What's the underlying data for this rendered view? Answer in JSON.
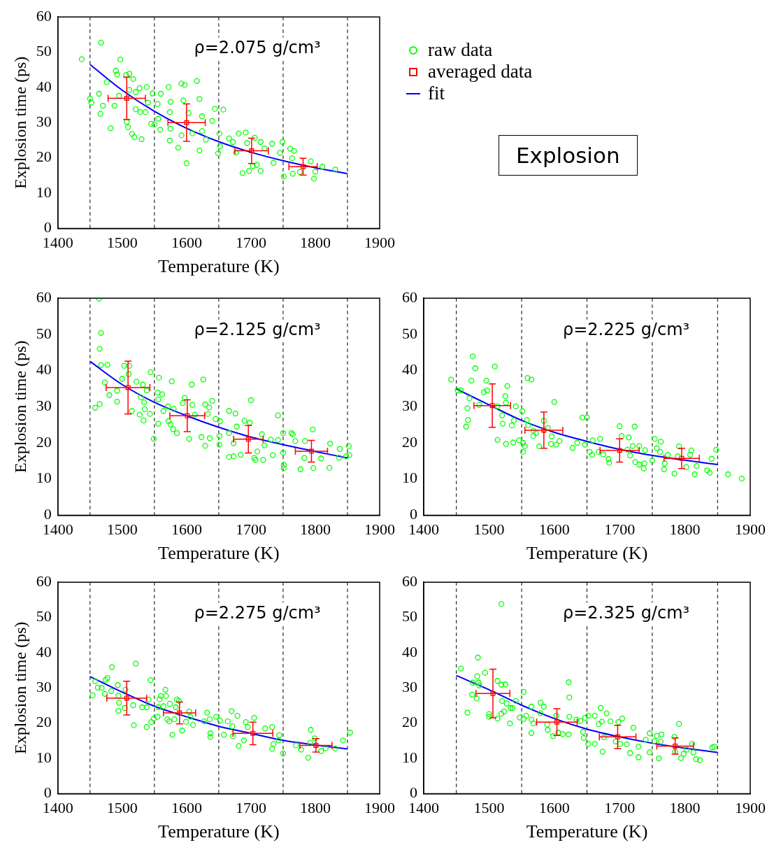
{
  "chart_data": [
    {
      "type": "scatter",
      "xlabel": "Temperature (K)",
      "ylabel": "Explosion time (ps)",
      "xlim": [
        1400,
        1900
      ],
      "xticks": [
        1400,
        1500,
        1600,
        1700,
        1800,
        1900
      ],
      "ylim": [
        0,
        60
      ],
      "yticks": [
        0,
        10,
        20,
        30,
        40,
        50,
        60
      ],
      "legend": "right",
      "annotations": [
        "ρ=2.075 g/cm³",
        "Explosion"
      ],
      "ref_lines": [
        {
          "axis": "x",
          "value": 1450,
          "line_style": "dashed"
        },
        {
          "axis": "x",
          "value": 1550,
          "line_style": "dashed"
        },
        {
          "axis": "x",
          "value": 1650,
          "line_style": "dashed"
        },
        {
          "axis": "x",
          "value": 1750,
          "line_style": "dashed"
        },
        {
          "axis": "x",
          "value": 1850,
          "line_style": "dashed"
        }
      ],
      "series": [
        {
          "name": "raw data",
          "type": "scatter",
          "marker": "circle",
          "color": "#00ff00",
          "x": [
            1437,
            1467,
            1497,
            1450,
            1452,
            1464,
            1466,
            1470,
            1476,
            1482,
            1488,
            1490,
            1492,
            1495,
            1506,
            1511,
            1517,
            1507,
            1509,
            1515,
            1519,
            1530,
            1511,
            1521,
            1527,
            1538,
            1521,
            1528,
            1536,
            1540,
            1547,
            1545,
            1550,
            1555,
            1556,
            1559,
            1560,
            1572,
            1575,
            1574,
            1592,
            1597,
            1616,
            1620,
            1595,
            1575,
            1574,
            1587,
            1600,
            1592,
            1603,
            1609,
            1620,
            1624,
            1624,
            1630,
            1640,
            1644,
            1657,
            1651,
            1652,
            1649,
            1666,
            1672,
            1681,
            1692,
            1677,
            1694,
            1706,
            1715,
            1733,
            1687,
            1697,
            1703,
            1715,
            1709,
            1721,
            1735,
            1745,
            1749,
            1761,
            1767,
            1751,
            1764,
            1765,
            1776,
            1793,
            1798,
            1800,
            1811,
            1831
          ],
          "values": [
            48,
            52.7,
            47.9,
            36.8,
            35.7,
            38.2,
            32.5,
            34.8,
            41.5,
            28.4,
            34.8,
            44.7,
            43.7,
            37.6,
            43.5,
            43.9,
            42.4,
            30.2,
            28.7,
            26.8,
            25.9,
            25.3,
            39.3,
            38.7,
            39.8,
            40.1,
            33.8,
            33,
            33,
            35.7,
            38.3,
            29.7,
            29.5,
            35.3,
            31.1,
            28,
            38.2,
            40.1,
            35.9,
            33,
            41.1,
            40.7,
            41.8,
            36.7,
            36.3,
            28.3,
            24.9,
            22.9,
            18.5,
            26.4,
            32.7,
            27,
            22.1,
            31.8,
            27.6,
            25.2,
            30.5,
            33.9,
            33.7,
            26.9,
            23.3,
            21.3,
            25.5,
            24.5,
            26.9,
            27.2,
            21.5,
            24.2,
            25.7,
            24.5,
            24,
            15.7,
            16.3,
            17.7,
            16.3,
            18,
            22.7,
            18.6,
            21.4,
            24.5,
            22.6,
            22,
            14.7,
            19.9,
            15.5,
            16,
            19,
            14.1,
            16.1,
            17.5,
            16.7
          ]
        },
        {
          "name": "averaged data",
          "type": "scatter",
          "marker": "square",
          "color": "#ff0000",
          "x": [
            1507,
            1600,
            1701,
            1781
          ],
          "values": [
            36.9,
            30,
            22,
            17.5
          ],
          "errors": [
            6,
            5.3,
            3.6,
            2.4
          ],
          "xerrors": [
            29,
            29,
            26,
            22
          ]
        },
        {
          "name": "fit",
          "type": "line",
          "color": "#0000ff",
          "x": [
            1450,
            1500,
            1550,
            1600,
            1650,
            1700,
            1750,
            1800,
            1850
          ],
          "values": [
            46.5,
            39.2,
            33.2,
            28.4,
            24.6,
            21.6,
            19.2,
            17.2,
            15.5
          ]
        }
      ]
    },
    {
      "type": "scatter",
      "xlabel": "Temperature (K)",
      "ylabel": "Explosion time (ps)",
      "xlim": [
        1400,
        1900
      ],
      "xticks": [
        1400,
        1500,
        1600,
        1700,
        1800,
        1900
      ],
      "ylim": [
        0,
        60
      ],
      "yticks": [
        0,
        10,
        20,
        30,
        40,
        50,
        60
      ],
      "annotations": [
        "ρ=2.125 g/cm³"
      ],
      "ref_lines": [
        {
          "axis": "x",
          "value": 1450,
          "line_style": "dashed"
        },
        {
          "axis": "x",
          "value": 1550,
          "line_style": "dashed"
        },
        {
          "axis": "x",
          "value": 1650,
          "line_style": "dashed"
        },
        {
          "axis": "x",
          "value": 1750,
          "line_style": "dashed"
        },
        {
          "axis": "x",
          "value": 1850,
          "line_style": "dashed"
        }
      ],
      "series": [
        {
          "type": "scatter",
          "marker": "circle",
          "color": "#00ff00",
          "x": [
            1464,
            1467,
            1465,
            1467,
            1477,
            1473,
            1458,
            1465,
            1480,
            1492,
            1492,
            1500,
            1503,
            1511,
            1510,
            1515,
            1522,
            1532,
            1538,
            1529,
            1534,
            1535,
            1527,
            1533,
            1544,
            1543,
            1549,
            1557,
            1555,
            1562,
            1556,
            1556,
            1564,
            1571,
            1577,
            1580,
            1572,
            1575,
            1579,
            1585,
            1594,
            1597,
            1608,
            1609,
            1613,
            1626,
            1629,
            1640,
            1635,
            1633,
            1604,
            1623,
            1629,
            1636,
            1645,
            1652,
            1651,
            1651,
            1666,
            1676,
            1666,
            1678,
            1673,
            1666,
            1673,
            1684,
            1690,
            1698,
            1700,
            1705,
            1707,
            1710,
            1719,
            1717,
            1721,
            1731,
            1734,
            1742,
            1742,
            1750,
            1750,
            1751,
            1751,
            1763,
            1765,
            1769,
            1777,
            1783,
            1784,
            1796,
            1797,
            1809,
            1823,
            1822,
            1838,
            1837,
            1852,
            1853,
            1848
          ],
          "values": [
            59.9,
            50.4,
            46,
            41.5,
            41.6,
            36.7,
            29.7,
            30.7,
            33.2,
            31.4,
            34.4,
            37.7,
            41.3,
            41.3,
            39,
            28.8,
            36.9,
            36.1,
            34.5,
            32.6,
            31.2,
            29.3,
            27.8,
            26.2,
            39.5,
            28,
            21.1,
            38,
            33.9,
            33.4,
            32,
            25.3,
            28.8,
            30.1,
            37,
            29.4,
            26,
            25.1,
            23.8,
            22.7,
            31,
            32.4,
            36.1,
            30.5,
            27.8,
            37.5,
            30.6,
            31.6,
            29.8,
            28,
            21.1,
            21.6,
            19.2,
            21.3,
            26.6,
            26,
            21.9,
            19.5,
            28.8,
            28.1,
            22.7,
            24.5,
            19.9,
            16.1,
            16.3,
            16.7,
            26.1,
            25.6,
            31.8,
            15.8,
            15.3,
            17.6,
            15.3,
            22.4,
            19.3,
            20.9,
            16.6,
            20.8,
            27.6,
            22.7,
            17.3,
            13.9,
            13,
            22.7,
            22.3,
            20.5,
            12.7,
            15.8,
            20.5,
            23.7,
            13,
            15.7,
            19.8,
            13.1,
            18.3,
            15.9,
            19.1,
            16.6,
            16.3
          ]
        },
        {
          "type": "scatter",
          "marker": "square",
          "color": "#ff0000",
          "x": [
            1509,
            1601,
            1696,
            1794
          ],
          "values": [
            35.3,
            27.5,
            21,
            17.7
          ],
          "errors": [
            7.3,
            4.4,
            3.8,
            3
          ],
          "xerrors": [
            34,
            27,
            23,
            25
          ]
        },
        {
          "type": "line",
          "color": "#0000ff",
          "x": [
            1450,
            1500,
            1550,
            1600,
            1650,
            1700,
            1750,
            1800,
            1850
          ],
          "values": [
            42.5,
            36.1,
            31.2,
            27.5,
            24.3,
            21.6,
            19.5,
            17.6,
            15.8
          ]
        }
      ]
    },
    {
      "type": "scatter",
      "xlabel": "Temperature (K)",
      "xlim": [
        1400,
        1900
      ],
      "xticks": [
        1400,
        1500,
        1600,
        1700,
        1800,
        1900
      ],
      "ylim": [
        0,
        60
      ],
      "yticks": [
        0,
        10,
        20,
        30,
        40,
        50,
        60
      ],
      "annotations": [
        "ρ=2.225 g/cm³"
      ],
      "ref_lines": [
        {
          "axis": "x",
          "value": 1450,
          "line_style": "dashed"
        },
        {
          "axis": "x",
          "value": 1550,
          "line_style": "dashed"
        },
        {
          "axis": "x",
          "value": 1650,
          "line_style": "dashed"
        },
        {
          "axis": "x",
          "value": 1750,
          "line_style": "dashed"
        },
        {
          "axis": "x",
          "value": 1850,
          "line_style": "dashed"
        }
      ],
      "series": [
        {
          "type": "scatter",
          "marker": "circle",
          "color": "#00ff00",
          "x": [
            1442,
            1452,
            1457,
            1475,
            1479,
            1473,
            1470,
            1467,
            1468,
            1465,
            1485,
            1496,
            1509,
            1492,
            1497,
            1513,
            1513,
            1526,
            1537,
            1546,
            1552,
            1555,
            1552,
            1525,
            1526,
            1528,
            1520,
            1521,
            1535,
            1541,
            1538,
            1551,
            1559,
            1565,
            1558,
            1560,
            1568,
            1568,
            1572,
            1577,
            1584,
            1590,
            1596,
            1595,
            1603,
            1608,
            1600,
            1628,
            1635,
            1643,
            1650,
            1647,
            1654,
            1658,
            1659,
            1670,
            1668,
            1675,
            1683,
            1684,
            1700,
            1703,
            1714,
            1712,
            1716,
            1723,
            1720,
            1724,
            1730,
            1730,
            1737,
            1739,
            1738,
            1750,
            1754,
            1763,
            1757,
            1762,
            1774,
            1768,
            1769,
            1784,
            1791,
            1789,
            1802,
            1810,
            1808,
            1815,
            1818,
            1834,
            1838,
            1841,
            1848,
            1866,
            1887
          ],
          "values": [
            37.5,
            34.5,
            34.5,
            43.9,
            40.6,
            37.2,
            32.3,
            29.6,
            26.3,
            24.5,
            30.5,
            37.2,
            41.1,
            34,
            34.5,
            30.1,
            20.8,
            19.7,
            20.1,
            20.7,
            20,
            19.1,
            17.5,
            32.9,
            31.1,
            35.7,
            27.6,
            25.3,
            24.8,
            30.1,
            26.2,
            28.7,
            37.9,
            37.5,
            26.3,
            24.9,
            23.3,
            21.9,
            22.7,
            19,
            26.1,
            24.1,
            21.8,
            19.7,
            19.5,
            20.5,
            31.3,
            18.6,
            20,
            27,
            27,
            19.5,
            17.5,
            16.7,
            20.7,
            21.1,
            17.5,
            16.8,
            15.5,
            14.5,
            24.6,
            21.9,
            21.5,
            18.1,
            16.5,
            24.5,
            19.1,
            14.7,
            19.1,
            14,
            12.9,
            18,
            14.3,
            15.1,
            21.1,
            20.3,
            18.5,
            17.5,
            16.7,
            12.7,
            14.3,
            11.5,
            19,
            16.3,
            13.3,
            17.9,
            16.7,
            11.3,
            13.6,
            12.4,
            11.7,
            15.6,
            18.1,
            11.3,
            10.1
          ]
        },
        {
          "type": "scatter",
          "marker": "square",
          "color": "#ff0000",
          "x": [
            1505,
            1584,
            1700,
            1795
          ],
          "values": [
            30.3,
            23.5,
            17.9,
            15.7
          ],
          "errors": [
            6,
            5,
            3.2,
            2.8
          ],
          "xerrors": [
            28,
            29,
            30,
            27
          ]
        },
        {
          "type": "line",
          "color": "#0000ff",
          "x": [
            1450,
            1500,
            1550,
            1600,
            1650,
            1700,
            1750,
            1800,
            1850
          ],
          "values": [
            34.9,
            30.5,
            26.2,
            22.9,
            20.4,
            18.2,
            16.5,
            15.2,
            14
          ]
        }
      ]
    },
    {
      "type": "scatter",
      "xlabel": "Temperature (K)",
      "ylabel": "Explosion time (ps)",
      "xlim": [
        1400,
        1900
      ],
      "xticks": [
        1400,
        1500,
        1600,
        1700,
        1800,
        1900
      ],
      "ylim": [
        0,
        60
      ],
      "yticks": [
        0,
        10,
        20,
        30,
        40,
        50,
        60
      ],
      "annotations": [
        "ρ=2.275 g/cm³"
      ],
      "ref_lines": [
        {
          "axis": "x",
          "value": 1450,
          "line_style": "dashed"
        },
        {
          "axis": "x",
          "value": 1550,
          "line_style": "dashed"
        },
        {
          "axis": "x",
          "value": 1650,
          "line_style": "dashed"
        },
        {
          "axis": "x",
          "value": 1750,
          "line_style": "dashed"
        },
        {
          "axis": "x",
          "value": 1850,
          "line_style": "dashed"
        }
      ],
      "series": [
        {
          "type": "scatter",
          "marker": "circle",
          "color": "#00ff00",
          "x": [
            1454,
            1458,
            1462,
            1468,
            1473,
            1474,
            1477,
            1484,
            1483,
            1493,
            1494,
            1495,
            1494,
            1505,
            1504,
            1517,
            1518,
            1521,
            1531,
            1538,
            1541,
            1544,
            1538,
            1545,
            1549,
            1556,
            1558,
            1560,
            1567,
            1568,
            1555,
            1564,
            1570,
            1573,
            1574,
            1578,
            1585,
            1588,
            1583,
            1581,
            1593,
            1599,
            1604,
            1606,
            1610,
            1627,
            1632,
            1636,
            1637,
            1637,
            1646,
            1652,
            1658,
            1664,
            1670,
            1671,
            1672,
            1679,
            1681,
            1689,
            1692,
            1695,
            1705,
            1722,
            1733,
            1735,
            1733,
            1744,
            1743,
            1750,
            1770,
            1778,
            1789,
            1793,
            1792,
            1799,
            1809,
            1816,
            1831,
            1843,
            1854
          ],
          "values": [
            27.9,
            31.9,
            30.1,
            30,
            28.3,
            32.3,
            32.8,
            35.9,
            29.1,
            30.8,
            27.8,
            25.8,
            23.5,
            29.5,
            24.3,
            25.1,
            19.4,
            36.9,
            24.5,
            24.5,
            26.7,
            32.2,
            18.9,
            20.3,
            21.3,
            24.5,
            26.8,
            27.7,
            29.5,
            27.7,
            21.8,
            24.8,
            21.1,
            20.5,
            25.5,
            16.7,
            26.7,
            26.3,
            24.5,
            21.1,
            17.9,
            20.4,
            23.3,
            21.8,
            19.5,
            20.5,
            23,
            21.1,
            17.1,
            16.1,
            21.8,
            20.7,
            16.7,
            20.5,
            23.4,
            19.1,
            16.3,
            22.1,
            13.5,
            15.1,
            20.3,
            18.9,
            21.5,
            18.5,
            18.9,
            14.1,
            12.7,
            16.6,
            15.1,
            11.4,
            13.7,
            12.5,
            10.2,
            18.1,
            14.4,
            15.7,
            12.1,
            12.9,
            12.8,
            15.1,
            17.3
          ]
        },
        {
          "type": "scatter",
          "marker": "square",
          "color": "#ff0000",
          "x": [
            1507,
            1589,
            1703,
            1801
          ],
          "values": [
            27.1,
            22.9,
            17.1,
            13.7
          ],
          "errors": [
            4.8,
            3.1,
            3.2,
            1.9
          ],
          "xerrors": [
            31,
            25,
            31,
            25
          ]
        },
        {
          "type": "line",
          "color": "#0000ff",
          "x": [
            1450,
            1500,
            1550,
            1600,
            1650,
            1700,
            1750,
            1800,
            1850
          ],
          "values": [
            33.2,
            28.8,
            24.8,
            21.8,
            19.1,
            17.1,
            15.1,
            13.8,
            12.7
          ]
        }
      ]
    },
    {
      "type": "scatter",
      "xlabel": "Temperature (K)",
      "xlim": [
        1400,
        1900
      ],
      "xticks": [
        1400,
        1500,
        1600,
        1700,
        1800,
        1900
      ],
      "ylim": [
        0,
        60
      ],
      "yticks": [
        0,
        10,
        20,
        30,
        40,
        50,
        60
      ],
      "annotations": [
        "ρ=2.325 g/cm³"
      ],
      "ref_lines": [
        {
          "axis": "x",
          "value": 1450,
          "line_style": "dashed"
        },
        {
          "axis": "x",
          "value": 1550,
          "line_style": "dashed"
        },
        {
          "axis": "x",
          "value": 1650,
          "line_style": "dashed"
        },
        {
          "axis": "x",
          "value": 1750,
          "line_style": "dashed"
        },
        {
          "axis": "x",
          "value": 1850,
          "line_style": "dashed"
        }
      ],
      "series": [
        {
          "type": "scatter",
          "marker": "circle",
          "color": "#00ff00",
          "x": [
            1457,
            1467,
            1475,
            1474,
            1481,
            1483,
            1482,
            1484,
            1485,
            1494,
            1500,
            1500,
            1513,
            1519,
            1525,
            1519,
            1513,
            1519,
            1520,
            1523,
            1527,
            1532,
            1533,
            1536,
            1541,
            1547,
            1553,
            1553,
            1557,
            1565,
            1565,
            1565,
            1568,
            1579,
            1584,
            1579,
            1589,
            1590,
            1598,
            1603,
            1606,
            1613,
            1622,
            1622,
            1623,
            1623,
            1634,
            1640,
            1644,
            1645,
            1647,
            1652,
            1652,
            1662,
            1668,
            1662,
            1671,
            1676,
            1674,
            1680,
            1673,
            1686,
            1698,
            1704,
            1694,
            1701,
            1711,
            1716,
            1721,
            1729,
            1729,
            1740,
            1746,
            1746,
            1753,
            1757,
            1764,
            1760,
            1763,
            1784,
            1791,
            1785,
            1794,
            1798,
            1803,
            1811,
            1813,
            1817,
            1823,
            1842,
            1845
          ],
          "values": [
            35.5,
            23,
            31.5,
            28.1,
            27,
            38.6,
            33.3,
            31.5,
            30.7,
            34.3,
            22.6,
            21.8,
            32,
            30.9,
            31,
            53.8,
            21.3,
            22.7,
            26.3,
            23.3,
            25.6,
            19.9,
            24.3,
            24.3,
            26.3,
            21.6,
            28.9,
            21.2,
            22.1,
            24.7,
            21,
            17.2,
            19.9,
            25.8,
            24.7,
            22.8,
            19.6,
            18.1,
            16.3,
            22.1,
            17.3,
            16.9,
            16.8,
            31.6,
            27.3,
            21.8,
            21,
            20.6,
            17.5,
            15.8,
            21.5,
            14.1,
            22.1,
            22.1,
            19.7,
            14.1,
            24.3,
            16,
            11.9,
            22.8,
            20.4,
            20.5,
            20.3,
            21.3,
            14.8,
            14.1,
            14,
            11.5,
            18.7,
            10.3,
            13.3,
            15.3,
            17.1,
            11.7,
            14.9,
            16.4,
            16.8,
            10,
            14.8,
            16.1,
            19.8,
            11.9,
            10.1,
            11.3,
            12.5,
            14.1,
            11.7,
            9.8,
            9.5,
            13.1,
            13.3
          ]
        },
        {
          "type": "scatter",
          "marker": "square",
          "color": "#ff0000",
          "x": [
            1506,
            1604,
            1697,
            1785
          ],
          "values": [
            28.4,
            20.3,
            16.1,
            13.5
          ],
          "errors": [
            6.9,
            3.8,
            3.3,
            2.3
          ],
          "xerrors": [
            26,
            31,
            28,
            28
          ]
        },
        {
          "type": "line",
          "color": "#0000ff",
          "x": [
            1450,
            1500,
            1550,
            1600,
            1650,
            1700,
            1750,
            1800,
            1850
          ],
          "values": [
            33.5,
            29.5,
            25.1,
            21.3,
            18.3,
            16.1,
            14.3,
            12.9,
            11.7
          ]
        }
      ]
    }
  ]
}
